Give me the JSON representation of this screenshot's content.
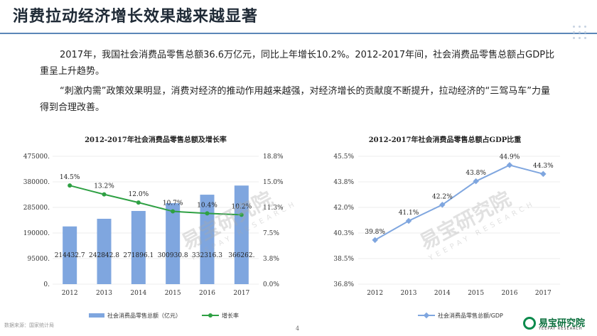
{
  "page": {
    "title": "消费拉动经济增长效果越来越显著",
    "paragraphs": [
      "2017年，我国社会消费品零售总额36.6万亿元，同比上年增长10.2%。2012-2017年间，社会消费品零售总额占GDP比重呈上升趋势。",
      "“刺激内需”政策效果明显，消费对经济的推动作用越来越强，对经济增长的贡献度不断提升，拉动经济的“三驾马车”力量得到合理改善。"
    ],
    "source_note": "数据来源：国家统计局",
    "page_number": "4",
    "watermark": {
      "text": "易宝研究院",
      "sub": "YEEPAY RESEARCH"
    },
    "brand": {
      "name": "易宝研究院",
      "sub": "YEEPAY RESEARCH"
    }
  },
  "chart_data": [
    {
      "type": "bar",
      "title": "2012-2017年社会消费品零售总额及增长率",
      "categories": [
        "2012",
        "2013",
        "2014",
        "2015",
        "2016",
        "2017"
      ],
      "series": [
        {
          "name": "社会消费品零售总额（亿元）",
          "type": "bar",
          "axis": "left",
          "color": "#7fa6df",
          "values": [
            214432.7,
            242842.8,
            271896.1,
            300930.8,
            332316.3,
            366262
          ],
          "labels": [
            "214432.7",
            "242842.8",
            "271896.1",
            "300930.8",
            "332316.3",
            "366262."
          ]
        },
        {
          "name": "增长率",
          "type": "line",
          "axis": "right",
          "color": "#2ea043",
          "values": [
            14.5,
            13.2,
            12.0,
            10.7,
            10.4,
            10.2
          ],
          "labels": [
            "14.5%",
            "13.2%",
            "12.0%",
            "10.7%",
            "10.4%",
            "10.2%"
          ]
        }
      ],
      "left_axis": {
        "range": [
          0,
          475000
        ],
        "ticks": [
          "0.",
          "95000.",
          "190000.",
          "285000.",
          "380000.",
          "475000."
        ]
      },
      "right_axis": {
        "range": [
          0,
          18.8
        ],
        "ticks": [
          "0.0%",
          "3.8%",
          "7.5%",
          "11.3%",
          "15.0%",
          "18.8%"
        ]
      },
      "grid": true,
      "legend": "bottom"
    },
    {
      "type": "line",
      "title": "2012-2017年社会消费品零售总额占GDP比重",
      "categories": [
        "2012",
        "2013",
        "2014",
        "2015",
        "2016",
        "2017"
      ],
      "series": [
        {
          "name": "社会消费品零售总额/GDP",
          "color": "#7fa6df",
          "values": [
            39.8,
            41.1,
            42.2,
            43.8,
            44.9,
            44.3
          ],
          "labels": [
            "39.8%",
            "41.1%",
            "42.2%",
            "43.8%",
            "44.9%",
            "44.3%"
          ]
        }
      ],
      "y_axis": {
        "range": [
          36.8,
          45.5
        ],
        "ticks": [
          "36.8%",
          "38.5%",
          "40.3%",
          "42.0%",
          "43.8%",
          "45.5%"
        ]
      },
      "grid": true,
      "legend": "bottom"
    }
  ]
}
